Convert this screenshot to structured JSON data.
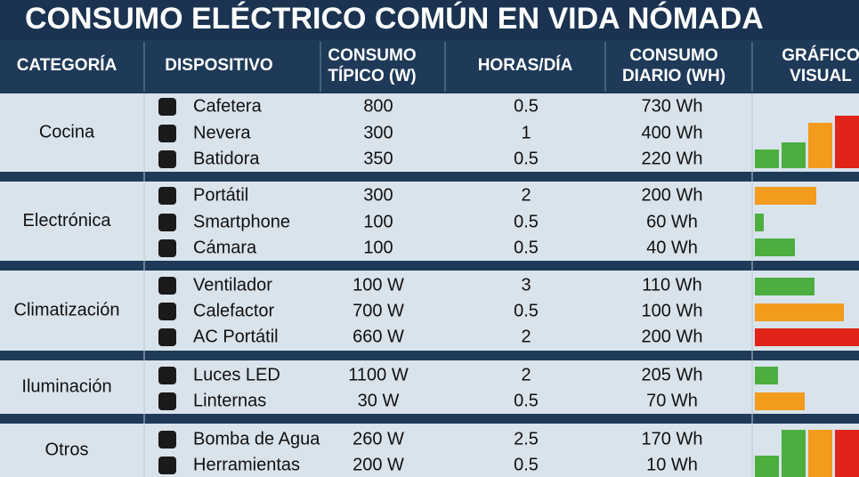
{
  "title": "CONSUMO ELÉCTRICO COMÚN EN VIDA NÓMADA",
  "headers": [
    [
      "CATEGORÍA"
    ],
    [
      "DISPOSITIVO"
    ],
    [
      "CONSUMO",
      "TÍPICO (W)"
    ],
    [
      "HORAS/DÍA"
    ],
    [
      "CONSUMO",
      "DIARIO (WH)"
    ],
    [
      "GRÁFICO",
      "VISUAL"
    ]
  ],
  "groups": [
    {
      "category": "Cocina",
      "rows": [
        [
          "Cafetera",
          "800",
          "0.5",
          "730 Wh"
        ],
        [
          "Nevera",
          "300",
          "1",
          "400 Wh"
        ],
        [
          "Batidora",
          "350",
          "0.5",
          "220 Wh"
        ]
      ]
    },
    {
      "category": "Electrónica",
      "rows": [
        [
          "Portátil",
          "300",
          "2",
          "200 Wh"
        ],
        [
          "Smartphone",
          "100",
          "0.5",
          "60 Wh"
        ],
        [
          "Cámara",
          "100",
          "0.5",
          "40 Wh"
        ]
      ]
    },
    {
      "category": "Climatización",
      "rows": [
        [
          "Ventilador",
          "100 W",
          "3",
          "110 Wh"
        ],
        [
          "Calefactor",
          "700 W",
          "0.5",
          "100 Wh"
        ],
        [
          "AC Portátil",
          "660 W",
          "2",
          "200 Wh"
        ]
      ]
    },
    {
      "category": "Iluminación",
      "rows": [
        [
          "Luces LED",
          "1100 W",
          "2",
          "205 Wh"
        ],
        [
          "Linternas",
          "30 W",
          "0.5",
          "70 Wh"
        ]
      ]
    },
    {
      "category": "Otros",
      "rows": [
        [
          "Bomba de Agua",
          "260 W",
          "2.5",
          "170 Wh"
        ],
        [
          "Herramientas",
          "200 W",
          "0.5",
          "10 Wh"
        ]
      ]
    }
  ]
}
